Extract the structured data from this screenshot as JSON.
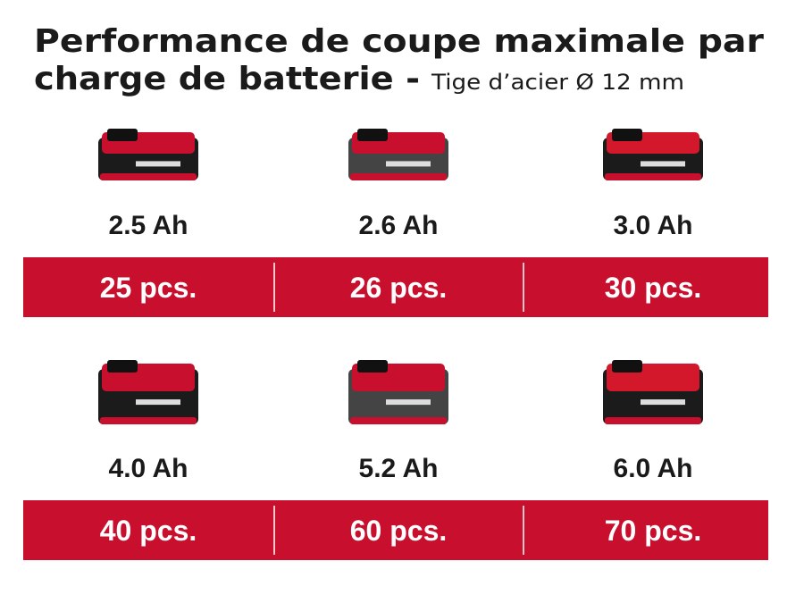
{
  "header": {
    "title": [
      "Performance de coupe maximale par",
      "charge de batterie -"
    ],
    "subtitle": "Tige d’acier Ø 12 mm"
  },
  "batteries": [
    {
      "capacity": "2.5 Ah",
      "count": "25 pcs."
    },
    {
      "capacity": "2.6 Ah",
      "count": "26 pcs."
    },
    {
      "capacity": "3.0 Ah",
      "count": "30 pcs."
    },
    {
      "capacity": "4.0 Ah",
      "count": "40 pcs."
    },
    {
      "capacity": "5.2 Ah",
      "count": "60 pcs."
    },
    {
      "capacity": "6.0 Ah",
      "count": "70 pcs."
    }
  ]
}
